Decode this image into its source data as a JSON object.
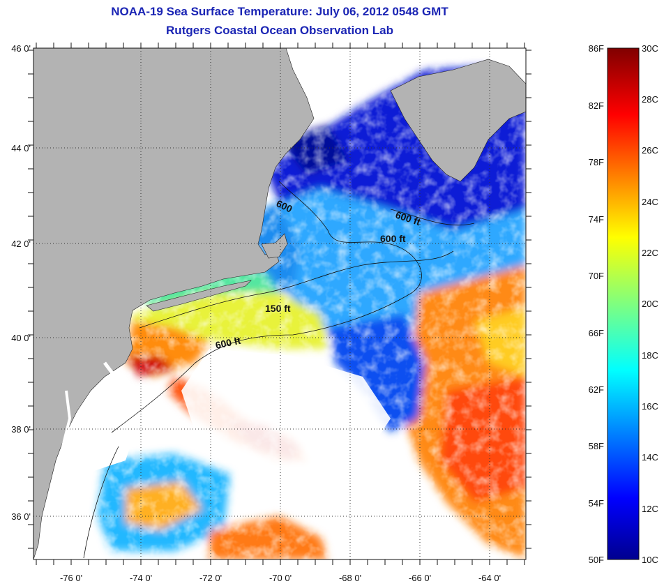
{
  "title": {
    "line1": "NOAA-19 Sea Surface Temperature:  July 06, 2012 0548 GMT",
    "line2": "Rutgers Coastal Ocean Observation Lab"
  },
  "map": {
    "lat_ticks": [
      "46 0'",
      "44 0'",
      "42 0'",
      "40 0'",
      "38 0'",
      "36 0'"
    ],
    "lon_ticks": [
      "-76 0'",
      "-74 0'",
      "-72 0'",
      "-70 0'",
      "-68 0'",
      "-66 0'",
      "-64 0'"
    ],
    "contour_labels": [
      "600",
      "600 ft",
      "600 ft",
      "150 ft",
      "600 ft"
    ],
    "colors": {
      "land": "#b3b3b3",
      "cloud": "#ffffff"
    }
  },
  "colorbar": {
    "fahrenheit_labels": [
      "86F",
      "82F",
      "78F",
      "74F",
      "70F",
      "66F",
      "62F",
      "58F",
      "54F",
      "50F"
    ],
    "celsius_labels": [
      "30C",
      "28C",
      "26C",
      "24C",
      "22C",
      "20C",
      "18C",
      "16C",
      "14C",
      "12C",
      "10C"
    ]
  }
}
